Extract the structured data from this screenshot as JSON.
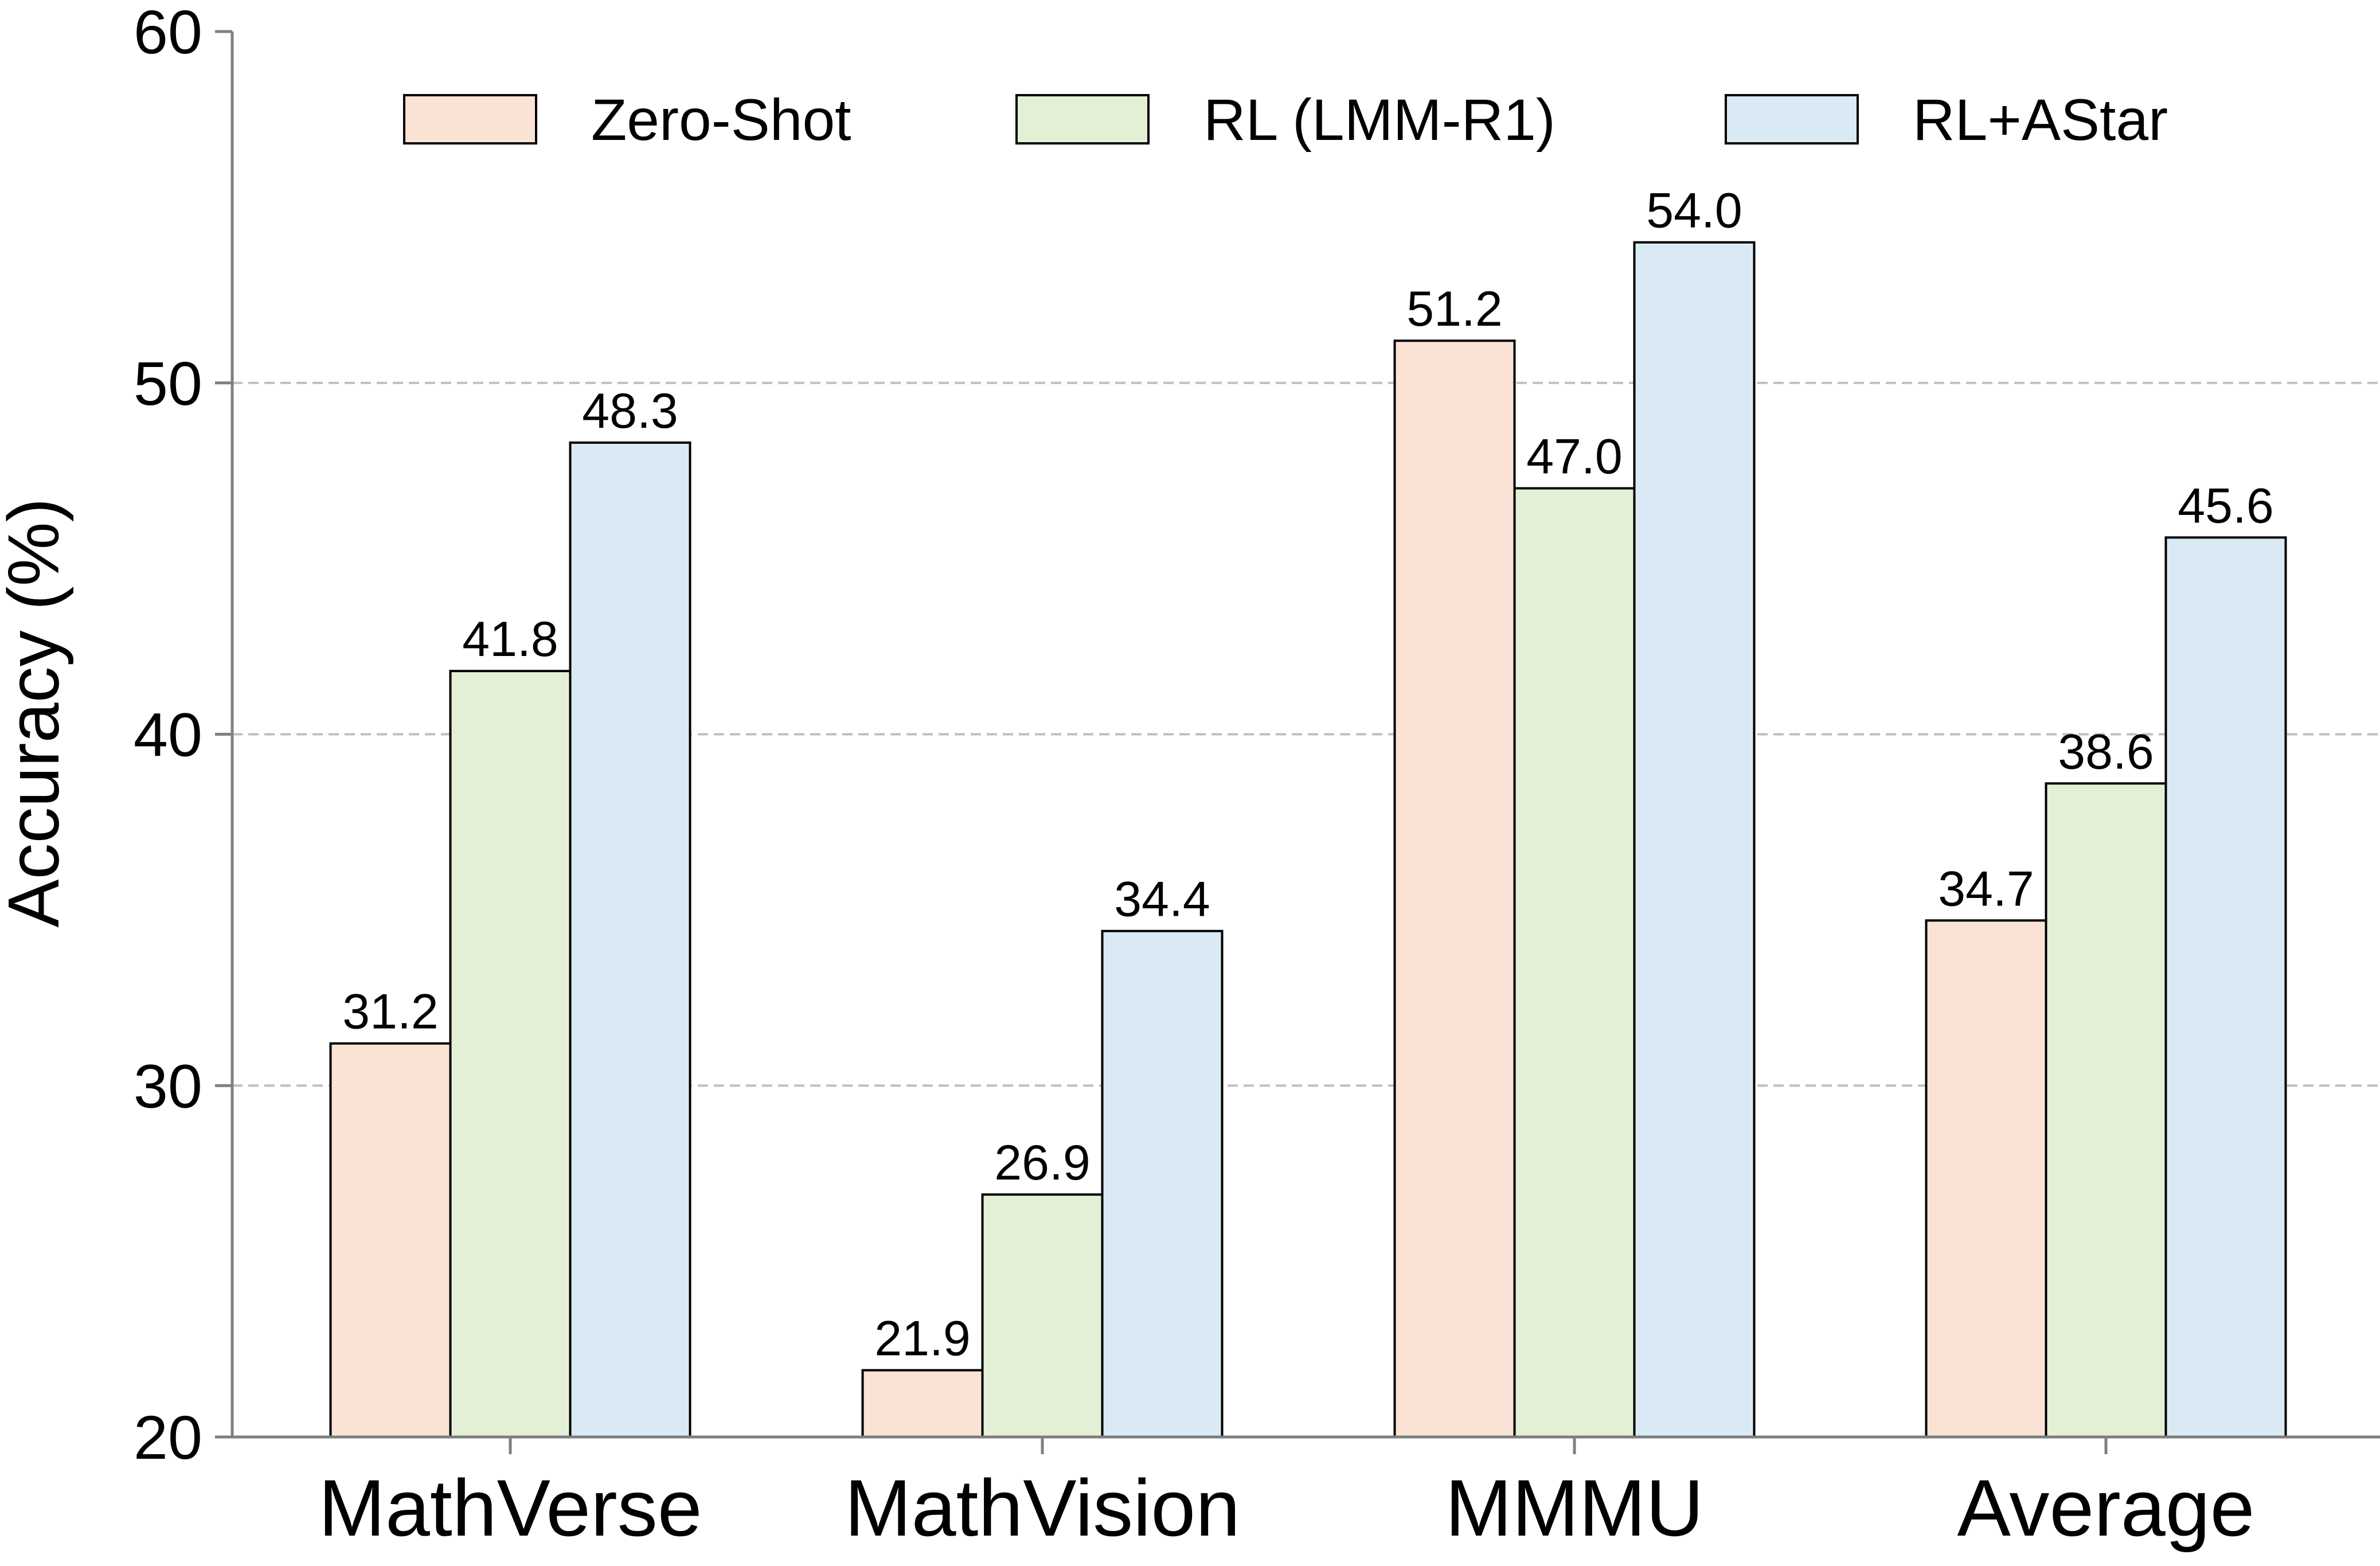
{
  "chart_data": {
    "type": "bar",
    "title": "",
    "xlabel": "",
    "ylabel": "Accuracy (%)",
    "categories": [
      "MathVerse",
      "MathVision",
      "MMMU",
      "Average"
    ],
    "series": [
      {
        "name": "Zero-Shot",
        "color": "#fae3d5",
        "values": [
          31.2,
          21.9,
          51.2,
          34.7
        ],
        "labels": [
          "31.2",
          "21.9",
          "51.2",
          "34.7"
        ]
      },
      {
        "name": "RL (LMM-R1)",
        "color": "#e3f0d6",
        "values": [
          41.8,
          26.9,
          47.0,
          38.6
        ],
        "labels": [
          "41.8",
          "26.9",
          "47.0",
          "38.6"
        ]
      },
      {
        "name": "RL+AStar",
        "color": "#d9eaf5",
        "values": [
          48.3,
          34.4,
          54.0,
          45.6
        ],
        "labels": [
          "48.3",
          "34.4",
          "54.0",
          "45.6"
        ]
      }
    ],
    "ylim": [
      20,
      60
    ],
    "yticks": [
      "20",
      "30",
      "40",
      "50",
      "60"
    ],
    "grid": "y-dashed",
    "legend_position": "top",
    "colors": {
      "bar_edge": "#000000",
      "axis": "#7f7f7f",
      "grid": "#bfbfbf",
      "text": "#000000"
    }
  }
}
